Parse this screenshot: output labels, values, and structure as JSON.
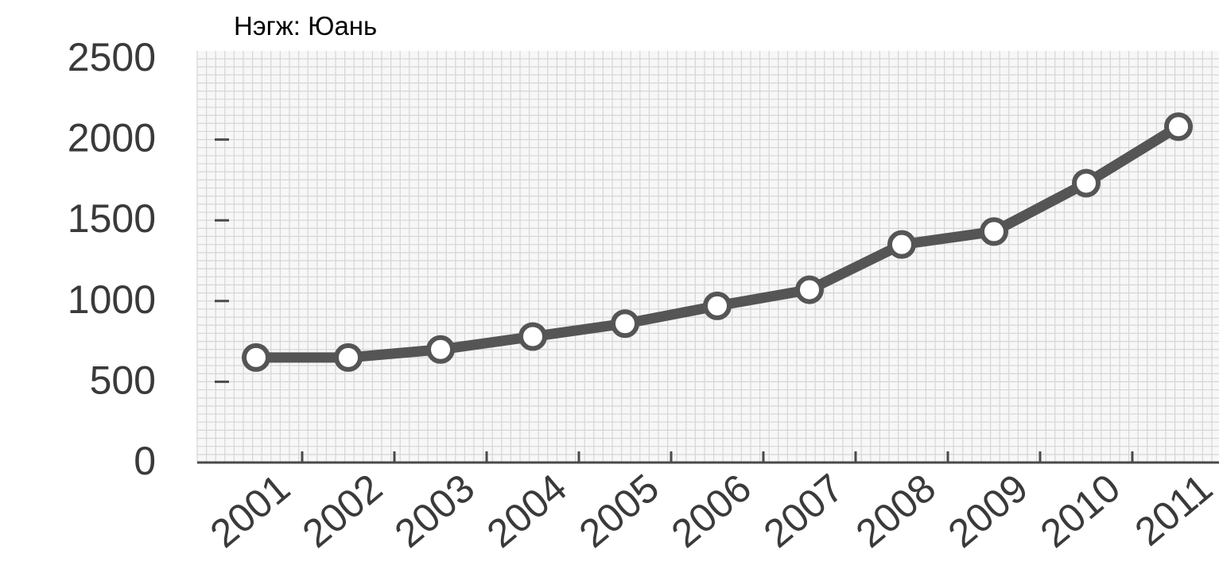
{
  "chart_data": {
    "type": "line",
    "unit_label": "Нэгж: Юань",
    "categories": [
      "2001",
      "2002",
      "2003",
      "2004",
      "2005",
      "2006",
      "2007",
      "2008",
      "2009",
      "2010",
      "2011"
    ],
    "series": [
      {
        "values": [
          650,
          650,
          700,
          780,
          860,
          970,
          1070,
          1350,
          1430,
          1730,
          2080
        ]
      }
    ],
    "y_ticks": [
      "0",
      "500",
      "1000",
      "1500",
      "2000",
      "2500"
    ],
    "ylim": [
      0,
      2500
    ],
    "grid": true,
    "legend": "none",
    "colors": {
      "line": "#555555",
      "marker_fill": "#ffffff",
      "grid": "#d6d6d6",
      "axis": "#4a4a4a",
      "tick_text": "#3a3a3a"
    }
  }
}
